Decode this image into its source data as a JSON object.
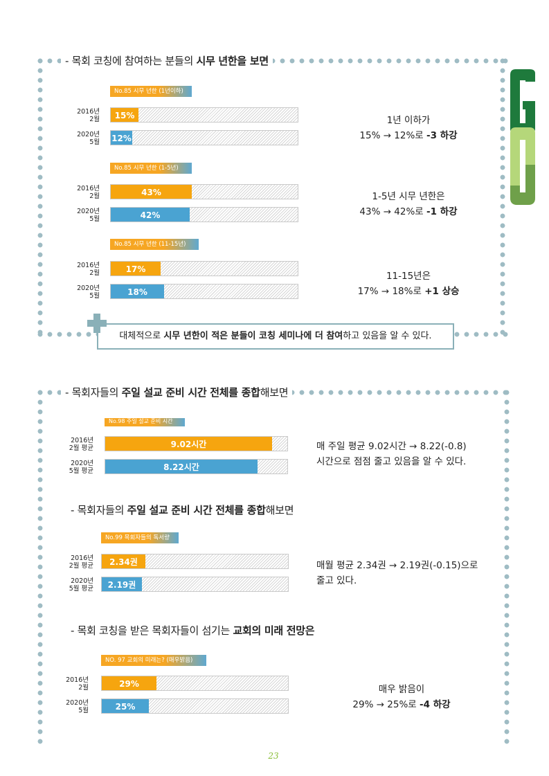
{
  "section1": {
    "heading_pre": "- 목회 코칭에 참여하는 분들의 ",
    "heading_bold": "시무 년한을 보면",
    "charts": [
      {
        "tag": "No.85 시무 년한 (1년이하)",
        "rows": [
          {
            "label1": "2016년",
            "label2": "2월",
            "value": 15,
            "text": "15%",
            "color": "orange"
          },
          {
            "label1": "2020년",
            "label2": "5월",
            "value": 12,
            "text": "12%",
            "color": "blue"
          }
        ],
        "note_line1": "1년 이하가",
        "note_line2_pre": "15% → 12%로 ",
        "note_line2_bold": "-3 하강"
      },
      {
        "tag": "No.85 시무 년한 (1-5년)",
        "rows": [
          {
            "label1": "2016년",
            "label2": "2월",
            "value": 43,
            "text": "43%",
            "color": "orange"
          },
          {
            "label1": "2020년",
            "label2": "5월",
            "value": 42,
            "text": "42%",
            "color": "blue"
          }
        ],
        "note_line1": "1-5년 시무 년한은",
        "note_line2_pre": "43% → 42%로 ",
        "note_line2_bold": "-1 하강"
      },
      {
        "tag": "No.85 시무 년한 (11-15년)",
        "rows": [
          {
            "label1": "2016년",
            "label2": "2월",
            "value": 17,
            "text": "17%",
            "color": "orange"
          },
          {
            "label1": "2020년",
            "label2": "5월",
            "value": 18,
            "text": "18%",
            "color": "blue"
          }
        ],
        "note_line1": "11-15년은",
        "note_line2_pre": "17% → 18%로 ",
        "note_line2_bold": "+1 상승"
      }
    ],
    "summary_pre": "대체적으로 ",
    "summary_bold1": "시무 년한이 적은 분들이 코칭 세미나에 더 참여",
    "summary_post": "하고 있음을 알 수 있다."
  },
  "section2": {
    "heading_pre": "- 목회자들의 ",
    "heading_bold": "주일 설교 준비 시간 전체를 종합",
    "heading_post": "해보면",
    "chart": {
      "tag": "No.98 주일 설교 준비 시간",
      "rows": [
        {
          "label1": "2016년",
          "label2": "2월 평균",
          "value": 9.02,
          "text": "9.02시간",
          "color": "orange"
        },
        {
          "label1": "2020년",
          "label2": "5월 평균",
          "value": 8.22,
          "text": "8.22시간",
          "color": "blue"
        }
      ],
      "max": 10,
      "note_line1": "매 주일 평균 9.02시간 → 8.22(-0.8)",
      "note_line2": "시간으로 점점 줄고 있음을 알 수 있다."
    }
  },
  "section3": {
    "heading_pre": "- 목회자들의 ",
    "heading_bold": "주일 설교 준비 시간 전체를 종합",
    "heading_post": "해보면",
    "chart": {
      "tag": "No.99 목회자들의 독서량",
      "rows": [
        {
          "label1": "2016년",
          "label2": "2월 평균",
          "value": 2.34,
          "text": "2.34권",
          "color": "orange"
        },
        {
          "label1": "2020년",
          "label2": "5월 평균",
          "value": 2.19,
          "text": "2.19권",
          "color": "blue"
        }
      ],
      "max": 8.6,
      "note_line1": "매월 평균 2.34권  → 2.19권(-0.15)으로",
      "note_line2": "줄고 있다."
    }
  },
  "section4": {
    "heading_pre": "- 목회 코칭을 받은 목회자들이 섬기는 ",
    "heading_bold": "교회의 미래 전망은",
    "chart": {
      "tag": "NO. 97 교회의 미래는? (매우밝음)",
      "rows": [
        {
          "label1": "2016년",
          "label2": "2월",
          "value": 29,
          "text": "29%",
          "color": "orange"
        },
        {
          "label1": "2020년",
          "label2": "5월",
          "value": 25,
          "text": "25%",
          "color": "blue"
        }
      ],
      "note_line1": "매우 밝음이",
      "note_line2_pre": "29% → 25%로 ",
      "note_line2_bold": "-4 하강"
    }
  },
  "logo": {
    "letters": "GO",
    "colors": {
      "dark": "#1e7a3c",
      "light": "#b5d77a",
      "mid": "#6fa04a"
    }
  },
  "page_number": "23",
  "colors": {
    "orange": "#f6a50f",
    "blue": "#4aa3d2",
    "frame": "#9fbcc4"
  }
}
